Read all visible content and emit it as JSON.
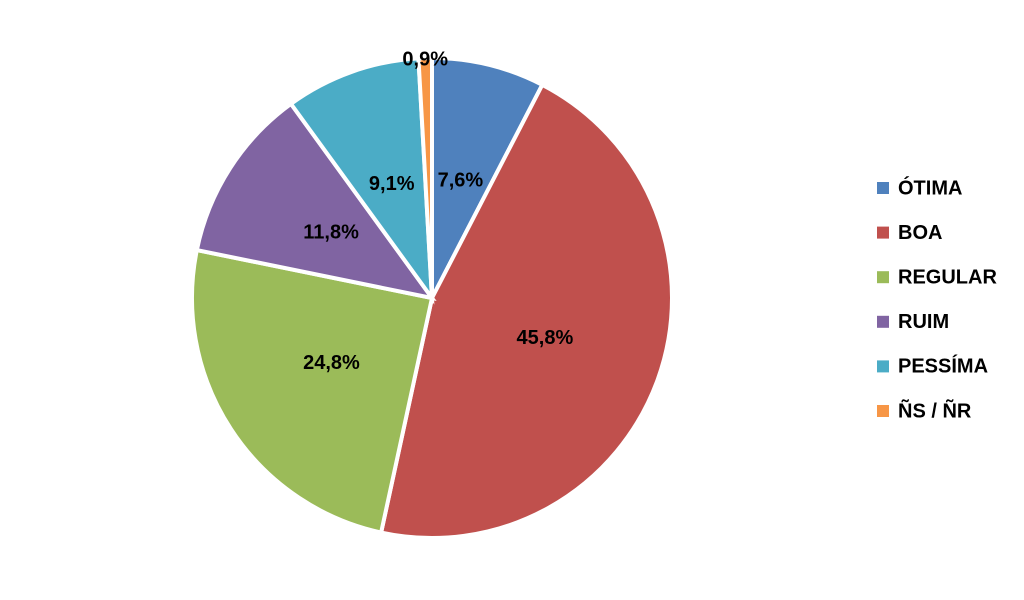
{
  "chart_data": {
    "type": "pie",
    "categories": [
      "ÓTIMA",
      "BOA",
      "REGULAR",
      "RUIM",
      "PESSÍMA",
      "ÑS / ÑR"
    ],
    "values": [
      7.6,
      45.8,
      24.8,
      11.8,
      9.1,
      0.9
    ],
    "value_labels": [
      "7,6%",
      "45,8%",
      "24,8%",
      "11,8%",
      "9,1%",
      "0,9%"
    ],
    "colors": [
      "#4f81bd",
      "#c0504d",
      "#9bbb59",
      "#8064a2",
      "#4bacc6",
      "#f79646"
    ],
    "legend": "right"
  }
}
